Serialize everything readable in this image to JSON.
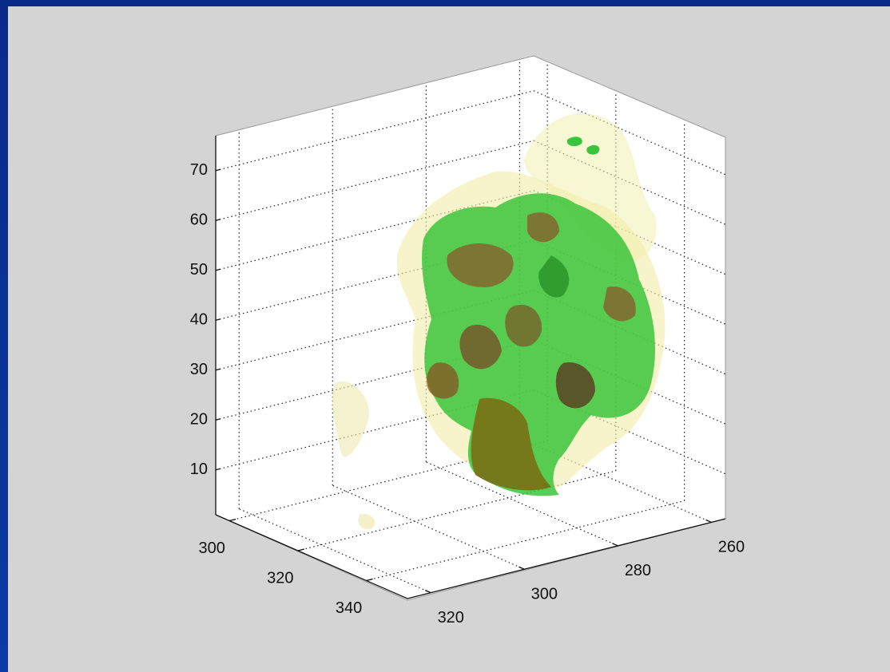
{
  "chart_data": {
    "type": "isosurface3d",
    "xlim": [
      296,
      352
    ],
    "xticks": [
      300,
      320,
      340
    ],
    "ylim": [
      257,
      325
    ],
    "yticks": [
      260,
      280,
      300,
      320
    ],
    "zlim": [
      1,
      77
    ],
    "zticks": [
      10,
      20,
      30,
      40,
      50,
      60,
      70
    ],
    "grid": true
  }
}
